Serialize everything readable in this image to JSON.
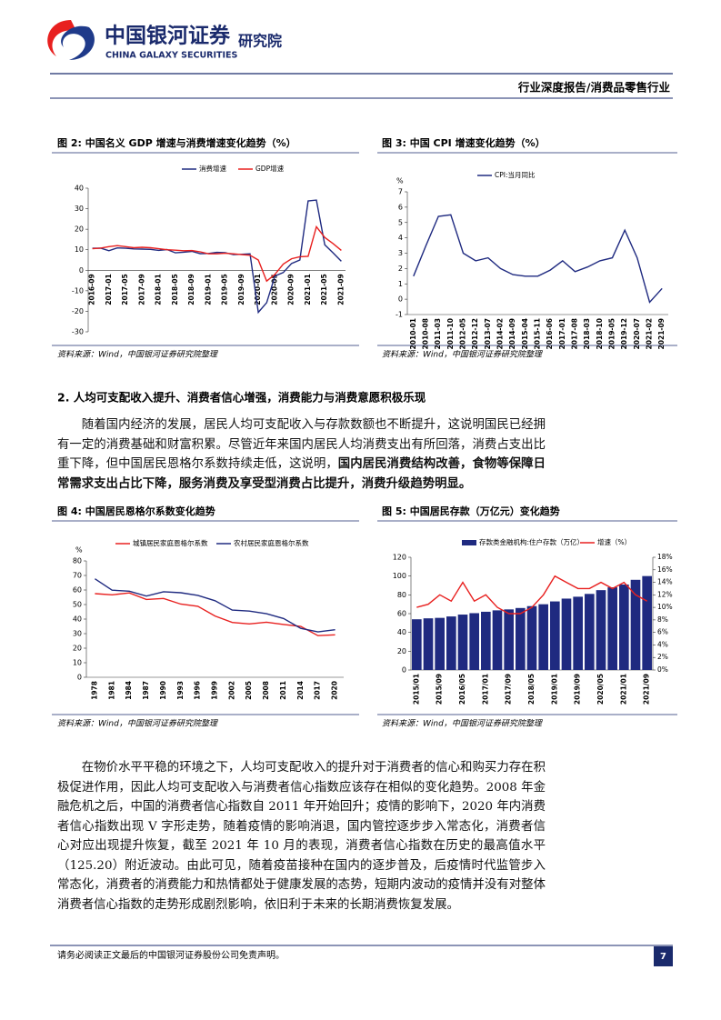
{
  "header": {
    "logo_cn": "中国银河证券",
    "logo_en": "CHINA GALAXY SECURITIES",
    "institute": "研究院",
    "report_type": "行业深度报告/消费品零售行业"
  },
  "figures": [
    {
      "title": "图 2: 中国名义 GDP 增速与消费增速变化趋势（%）",
      "source": "资料来源：Wind，中国银河证券研究院整理",
      "chart": {
        "type": "line",
        "categories": [
          "2016-09",
          null,
          "2017-01",
          null,
          "2017-05",
          null,
          "2017-09",
          null,
          "2018-01",
          null,
          "2018-05",
          null,
          "2018-09",
          null,
          "2019-01",
          null,
          "2019-05",
          null,
          "2019-09",
          null,
          "2020-01",
          null,
          "2020-05",
          null,
          "2020-09",
          null,
          "2021-01",
          null,
          "2021-05",
          null,
          "2021-09"
        ],
        "series": [
          {
            "name": "消费增速",
            "color": "#1f2a80",
            "values": [
              10.7,
              10.8,
              9.5,
              10.9,
              10.7,
              10.4,
              10.3,
              10.2,
              9.7,
              10.1,
              8.5,
              8.8,
              9.2,
              8.1,
              8.2,
              8.7,
              8.6,
              7.6,
              7.8,
              8.0,
              -20.5,
              -15.8,
              -2.8,
              -1.1,
              3.3,
              5.0,
              33.8,
              34.2,
              12.4,
              8.5,
              4.4
            ]
          },
          {
            "name": "GDP增速",
            "color": "#e8201f",
            "values": [
              10.5,
              10.8,
              11.5,
              12,
              11.5,
              11,
              11.2,
              11,
              10.5,
              10,
              9.8,
              9.5,
              9.6,
              9,
              8,
              8,
              8.3,
              8,
              7.6,
              7.3,
              5,
              -5.3,
              -2,
              3,
              5.6,
              6.6,
              6.8,
              21.2,
              16,
              13,
              9.7
            ]
          }
        ],
        "ylim": [
          -30,
          40
        ],
        "yticks": [
          -30,
          -20,
          -10,
          0,
          10,
          20,
          30,
          40
        ]
      }
    },
    {
      "title": "图 3: 中国 CPI 增速变化趋势（%）",
      "source": "资料来源：Wind，中国银河证券研究院整理",
      "chart": {
        "type": "line",
        "ylabel": "%",
        "categories": [
          "2010-01",
          "2010-08",
          "2011-03",
          "2011-10",
          "2012-05",
          "2012-12",
          "2013-07",
          "2014-02",
          "2014-09",
          "2015-04",
          "2015-11",
          "2016-06",
          "2017-01",
          "2017-08",
          "2018-03",
          "2018-10",
          "2019-05",
          "2019-12",
          "2020-07",
          "2021-02",
          "2021-09"
        ],
        "series": [
          {
            "name": "CPI:当月同比",
            "color": "#1f2a80",
            "values": [
              1.5,
              3.5,
              5.4,
              5.5,
              3.0,
              2.5,
              2.7,
              2.0,
              1.6,
              1.5,
              1.5,
              1.9,
              2.5,
              1.8,
              2.1,
              2.5,
              2.7,
              4.5,
              2.7,
              -0.2,
              0.7
            ]
          }
        ],
        "ylim": [
          -1,
          7
        ],
        "yticks": [
          -1,
          0,
          1,
          2,
          3,
          4,
          5,
          6,
          7
        ]
      }
    },
    {
      "title": "图 4: 中国居民恩格尔系数变化趋势",
      "source": "资料来源：Wind，中国银河证券研究院整理",
      "chart": {
        "type": "line",
        "ylabel": "%",
        "categories": [
          "1978",
          "1981",
          "1984",
          "1987",
          "1990",
          "1993",
          "1996",
          "1999",
          "2002",
          "2005",
          "2008",
          "2011",
          "2014",
          "2017",
          "2020"
        ],
        "series": [
          {
            "name": "城镇居民家庭恩格尔系数",
            "color": "#e8201f",
            "values": [
              57.5,
              56.7,
              58,
              53.5,
              54.2,
              50.3,
              48.8,
              42.1,
              37.7,
              36.7,
              37.9,
              36.3,
              35.0,
              28.6,
              29.2
            ]
          },
          {
            "name": "农村居民家庭恩格尔系数",
            "color": "#1f2a80",
            "values": [
              67.7,
              59.9,
              59.2,
              55.8,
              58.8,
              58.1,
              56.3,
              52.6,
              46.2,
              45.5,
              43.7,
              40.4,
              33.6,
              31.2,
              32.7
            ]
          }
        ],
        "ylim": [
          0,
          80
        ],
        "yticks": [
          0,
          10,
          20,
          30,
          40,
          50,
          60,
          70,
          80
        ]
      }
    },
    {
      "title": "图 5: 中国居民存款（万亿元）变化趋势",
      "source": "资料来源：Wind，中国银河证券研究院整理",
      "chart": {
        "type": "bar",
        "categories": [
          "2015/01",
          null,
          "2015/09",
          null,
          "2016/05",
          null,
          "2017/01",
          null,
          "2017/09",
          null,
          "2018/05",
          null,
          "2019/01",
          null,
          "2019/09",
          null,
          "2020/05",
          null,
          "2021/01",
          null,
          "2021/09"
        ],
        "series": [
          {
            "name": "存款类金融机构:住户存款（万亿）",
            "color": "#1f2a80",
            "values": [
              54,
              55,
              55.5,
              57,
              59,
              60.5,
              62,
              63.5,
              64.5,
              66,
              68,
              70,
              73,
              76,
              78,
              81,
              85,
              88,
              91,
              96,
              100
            ]
          },
          {
            "name": "增速（%）",
            "color": "#e8201f",
            "type": "line",
            "axis": "y2",
            "values": [
              10,
              10.5,
              12,
              11,
              14,
              11,
              12,
              10,
              9,
              9,
              10,
              12,
              15,
              14,
              13,
              13,
              14,
              13,
              14,
              12,
              11
            ]
          }
        ],
        "ylim": [
          0,
          120
        ],
        "yticks": [
          0,
          20,
          40,
          60,
          80,
          100,
          120
        ],
        "y2lim": [
          0,
          18
        ],
        "y2ticks": [
          {
            "value": 0,
            "label": "0%"
          },
          {
            "value": 2,
            "label": "2%"
          },
          {
            "value": 4,
            "label": "4%"
          },
          {
            "value": 6,
            "label": "6%"
          },
          {
            "value": 8,
            "label": "8%"
          },
          {
            "value": 10,
            "label": "10%"
          },
          {
            "value": 12,
            "label": "12%"
          },
          {
            "value": 14,
            "label": "14%"
          },
          {
            "value": 16,
            "label": "16%"
          },
          {
            "value": 18,
            "label": "18%"
          }
        ]
      }
    }
  ],
  "section_heading": "2. 人均可支配收入提升、消费者信心增强，消费能力与消费意愿积极乐现",
  "paragraph_1": [
    {
      "text": "随着国内经济的发展，居民人均可支配收入与存款数额也不断提升，这说明国民已经拥有一定的消费基础和财富积累。尽管近年来国内居民人均消费支出有所回落，消费占支出比重下降，但中国居民恩格尔系数持续走低，这说明，",
      "bold": false
    },
    {
      "text": "国内居民消费结构改善，食物等保障日常需求支出占比下降，服务消费及享受型消费占比提升，消费升级趋势明显。",
      "bold": true
    }
  ],
  "paragraph_2": "在物价水平平稳的环境之下，人均可支配收入的提升对于消费者的信心和购买力存在积极促进作用，因此人均可支配收入与消费者信心指数应该存在相似的变化趋势。2008 年金融危机之后，中国的消费者信心指数自 2011 年开始回升；疫情的影响下，2020 年内消费者信心指数出现 V 字形走势，随着疫情的影响消退，国内管控逐步步入常态化，消费者信心对应出现提升恢复，截至 2021 年 10 月的表现，消费者信心指数在历史的最高值水平（125.20）附近波动。由此可见，随着疫苗接种在国内的逐步普及，后疫情时代监管步入常态化，消费者的消费能力和热情都处于健康发展的态势，短期内波动的疫情并没有对整体消费者信心指数的走势形成剧烈影响，依旧利于未来的长期消费恢复发展。",
  "footer": {
    "disclaimer": "请务必阅读正文最后的中国银河证券股份公司免责声明。",
    "page": "7"
  }
}
